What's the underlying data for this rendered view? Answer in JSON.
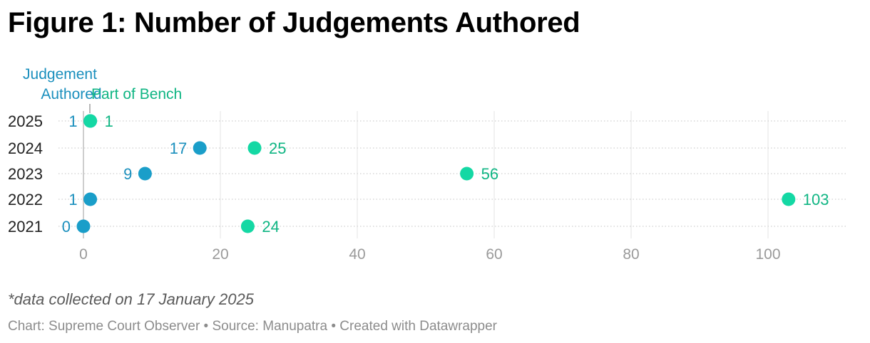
{
  "title": "Figure 1: Number of Judgements Authored",
  "note": "*data collected on 17 January 2025",
  "footer": {
    "chart_label": "Chart: Supreme Court Observer",
    "source_label": "Source: Manupatra",
    "credit_label": "Created with Datawrapper",
    "separator": "•"
  },
  "colors": {
    "authored": "#1a9ec9",
    "bench": "#14d8a4",
    "authored_label": "#1a8fbd",
    "bench_label": "#0fb583",
    "axis_text": "#9a9a9a"
  },
  "chart_data": {
    "type": "dot-range",
    "title": "Figure 1: Number of Judgements Authored",
    "categories": [
      "2025",
      "2024",
      "2023",
      "2022",
      "2021"
    ],
    "series": [
      {
        "name": "Judgement Authored",
        "values": [
          1,
          17,
          9,
          1,
          0
        ]
      },
      {
        "name": "Part of Bench",
        "values": [
          1,
          25,
          56,
          103,
          24
        ]
      }
    ],
    "xlim": [
      0,
      110
    ],
    "x_ticks": [
      0,
      20,
      40,
      60,
      80,
      100
    ],
    "legend_placement": "top-left, labels above first row",
    "grid": true
  }
}
